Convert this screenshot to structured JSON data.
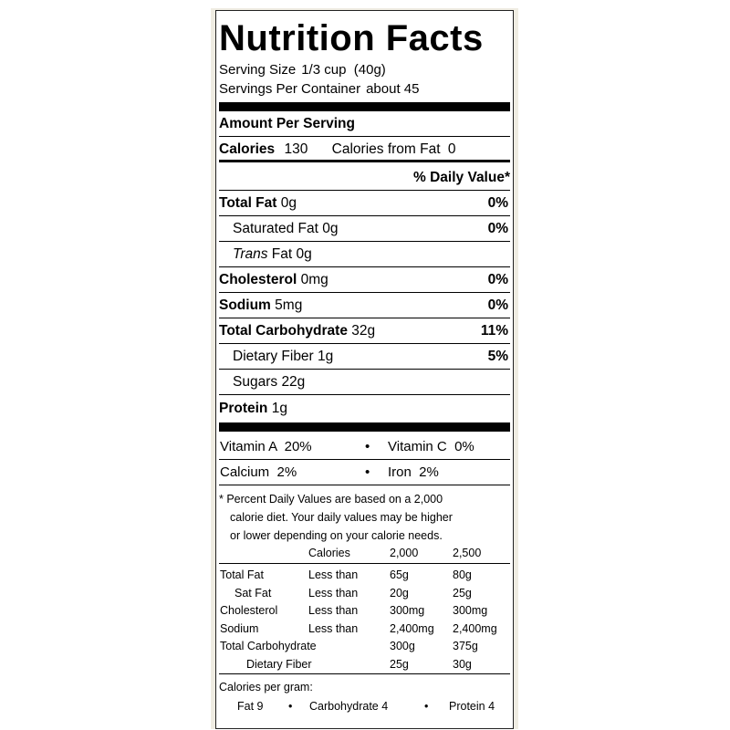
{
  "title": "Nutrition Facts",
  "serving_size_label": "Serving Size",
  "serving_size_value": "1/3 cup  (40g)",
  "servings_label": "Servings Per Container",
  "servings_value": "about 45",
  "amount_per_serving": "Amount Per Serving",
  "calories_label": "Calories",
  "calories_value": "130",
  "calories_fat_label": "Calories from Fat",
  "calories_fat_value": "0",
  "daily_value_header": "% Daily Value*",
  "nutrients": [
    {
      "name": "Total Fat",
      "amount": "0g",
      "dv": "0%"
    },
    {
      "name": "Saturated Fat",
      "amount": "0g",
      "dv": "0%"
    },
    {
      "name_italic": "Trans",
      "name": "Fat",
      "amount": "0g"
    },
    {
      "name": "Cholesterol",
      "amount": "0mg",
      "dv": "0%"
    },
    {
      "name": "Sodium",
      "amount": "5mg",
      "dv": "0%"
    },
    {
      "name": "Total Carbohydrate",
      "amount": "32g",
      "dv": "11%"
    },
    {
      "name": "Dietary Fiber",
      "amount": "1g",
      "dv": "5%"
    },
    {
      "name": "Sugars",
      "amount": "22g"
    },
    {
      "name": "Protein",
      "amount": "1g"
    }
  ],
  "vitamins": [
    {
      "left": "Vitamin A  20%",
      "right": "Vitamin C  0%"
    },
    {
      "left": "Calcium  2%",
      "right": "Iron  2%"
    }
  ],
  "bullet": "•",
  "footnote": [
    "* Percent Daily Values are based on a 2,000",
    "calorie diet. Your daily values may be higher",
    "or lower depending on your calorie needs."
  ],
  "dv_table": {
    "header": [
      "Calories",
      "2,000",
      "2,500"
    ],
    "rows": [
      [
        "Total Fat",
        "Less than",
        "65g",
        "80g"
      ],
      [
        "Sat Fat",
        "Less than",
        "20g",
        "25g"
      ],
      [
        "Cholesterol",
        "Less than",
        "300mg",
        "300mg"
      ],
      [
        "Sodium",
        "Less than",
        "2,400mg",
        "2,400mg"
      ],
      [
        "Total Carbohydrate",
        "",
        "300g",
        "375g"
      ],
      [
        "Dietary Fiber",
        "",
        "25g",
        "30g"
      ]
    ]
  },
  "calories_per_gram_label": "Calories per gram:",
  "calories_per_gram": [
    "Fat 9",
    "Carbohydrate 4",
    "Protein 4"
  ]
}
